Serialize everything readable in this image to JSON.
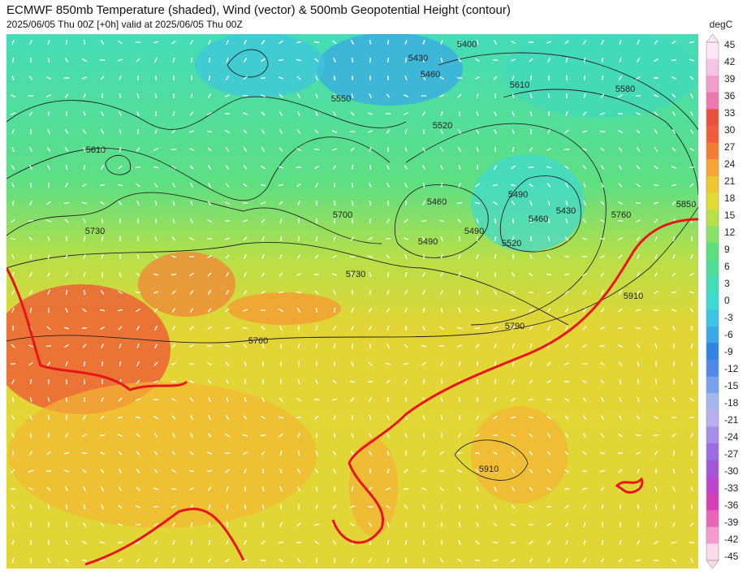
{
  "header": {
    "title": "ECMWF 850mb Temperature (shaded), Wind (vector) & 500mb Geopotential Height (contour)",
    "subtitle": "2025/06/05 Thu 00Z [+0h] valid at 2025/06/05 Thu 00Z"
  },
  "colorbar": {
    "unit": "degC",
    "levels": [
      {
        "label": "45",
        "color": "#fde6f6"
      },
      {
        "label": "42",
        "color": "#f9c3e6"
      },
      {
        "label": "39",
        "color": "#f29ccc"
      },
      {
        "label": "36",
        "color": "#ec78b0"
      },
      {
        "label": "33",
        "color": "#e9503c"
      },
      {
        "label": "30",
        "color": "#ef5e3a"
      },
      {
        "label": "27",
        "color": "#f27e36"
      },
      {
        "label": "24",
        "color": "#f5a533"
      },
      {
        "label": "21",
        "color": "#efc531"
      },
      {
        "label": "18",
        "color": "#e2da35"
      },
      {
        "label": "15",
        "color": "#b9e04a"
      },
      {
        "label": "12",
        "color": "#86e26a"
      },
      {
        "label": "9",
        "color": "#5ddf80"
      },
      {
        "label": "6",
        "color": "#4fdd98"
      },
      {
        "label": "3",
        "color": "#44dcb8"
      },
      {
        "label": "0",
        "color": "#3fd9d3"
      },
      {
        "label": "-3",
        "color": "#3cc5e0"
      },
      {
        "label": "-6",
        "color": "#3aa8e6"
      },
      {
        "label": "-9",
        "color": "#2f84e0"
      },
      {
        "label": "-12",
        "color": "#4f88e6"
      },
      {
        "label": "-15",
        "color": "#7aa2ec"
      },
      {
        "label": "-18",
        "color": "#a3b6ef"
      },
      {
        "label": "-21",
        "color": "#b8aef0"
      },
      {
        "label": "-24",
        "color": "#a58de8"
      },
      {
        "label": "-27",
        "color": "#9a6ee0"
      },
      {
        "label": "-30",
        "color": "#a357d8"
      },
      {
        "label": "-33",
        "color": "#bb45cc"
      },
      {
        "label": "-36",
        "color": "#d43fb8"
      },
      {
        "label": "-39",
        "color": "#e766b8"
      },
      {
        "label": "-42",
        "color": "#f39ad0"
      },
      {
        "label": "-45",
        "color": "#fbd8ea"
      }
    ]
  },
  "contour_labels": [
    "5430",
    "5400",
    "5460",
    "5550",
    "5610",
    "5580",
    "5520",
    "5610",
    "5730",
    "5700",
    "5460",
    "5490",
    "5490",
    "5430",
    "5460",
    "5520",
    "5490",
    "5760",
    "5850",
    "5730",
    "5760",
    "5910",
    "5790",
    "5910"
  ]
}
